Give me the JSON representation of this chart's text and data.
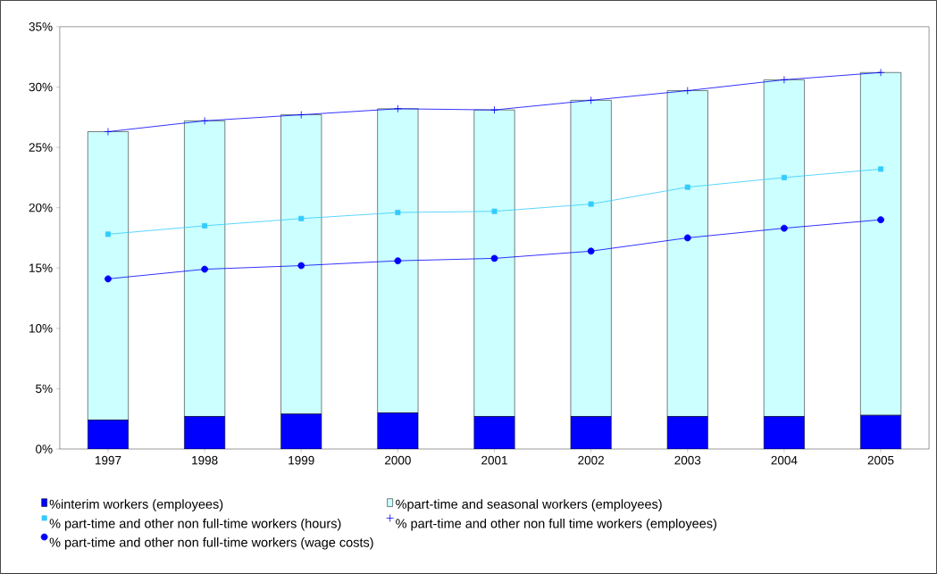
{
  "chart_data": {
    "type": "bar",
    "stacked": true,
    "categories": [
      "1997",
      "1998",
      "1999",
      "2000",
      "2001",
      "2002",
      "2003",
      "2004",
      "2005"
    ],
    "ylim": [
      0,
      35
    ],
    "yticks": [
      {
        "value": 0,
        "label": "0%"
      },
      {
        "value": 5,
        "label": "5%"
      },
      {
        "value": 10,
        "label": "10%"
      },
      {
        "value": 15,
        "label": "15%"
      },
      {
        "value": 20,
        "label": "20%"
      },
      {
        "value": 25,
        "label": "25%"
      },
      {
        "value": 30,
        "label": "30%"
      },
      {
        "value": 35,
        "label": "35%"
      }
    ],
    "legend": "bottom",
    "grid": false,
    "series": [
      {
        "name": "%interim workers (employees)",
        "color": "#0000ff",
        "values": [
          2.4,
          2.7,
          2.9,
          3.0,
          2.7,
          2.7,
          2.7,
          2.7,
          2.8
        ]
      },
      {
        "name": "%part-time and seasonal workers (employees)",
        "color": "#ccffff",
        "values": [
          23.9,
          24.5,
          24.8,
          25.2,
          25.4,
          26.2,
          27.0,
          27.9,
          28.4
        ]
      },
      {
        "name": "% part-time and other non full-time workers (hours)",
        "type": "line",
        "marker": "square",
        "color": "#33ccff",
        "values": [
          17.8,
          18.5,
          19.1,
          19.6,
          19.7,
          20.3,
          21.7,
          22.5,
          23.2
        ]
      },
      {
        "name": "% part-time and other non full time workers (employees)",
        "type": "line",
        "marker": "cross",
        "color": "#0000ff",
        "values": [
          26.3,
          27.2,
          27.7,
          28.2,
          28.1,
          28.9,
          29.7,
          30.6,
          31.2
        ]
      },
      {
        "name": "% part-time and other non full-time workers (wage costs)",
        "type": "line",
        "marker": "circle",
        "color": "#0000ff",
        "values": [
          14.1,
          14.9,
          15.2,
          15.6,
          15.8,
          16.4,
          17.5,
          18.3,
          19.0
        ]
      }
    ]
  }
}
